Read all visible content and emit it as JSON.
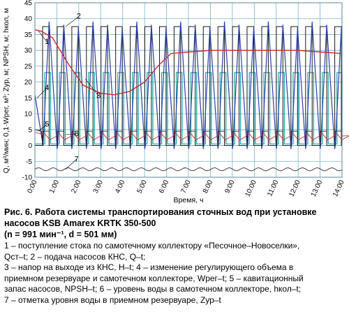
{
  "chart_data": {
    "type": "line",
    "xlabel": "Время, ч",
    "ylabel": "Q, м³/мин; 0,1·Wрег, м³; Zур, м; NPSH, м; hкол, м",
    "x_ticks": [
      "0:00",
      "1:00",
      "2:00",
      "3:00",
      "4:00",
      "5:00",
      "6:00",
      "7:00",
      "8:00",
      "9:00",
      "10:00",
      "11:00",
      "12:00",
      "13:00",
      "14:00"
    ],
    "y_ticks": [
      -10,
      -5,
      0,
      5,
      10,
      15,
      20,
      25,
      30,
      35,
      40,
      45
    ],
    "xlim": [
      0,
      14
    ],
    "ylim": [
      -10,
      45
    ],
    "grid": true,
    "colors": {
      "grid": "#7ab5c4",
      "line1": "#cc2a2a",
      "line2": "#1a1a1a",
      "line3_outline": "#1aa0a0",
      "line4": "#2a3ea8",
      "line5": "#222222",
      "line6": "#cc2a2a",
      "line7": "#333333"
    },
    "curve_labels": [
      "1",
      "2",
      "3",
      "4",
      "5",
      "6",
      "7"
    ],
    "series": [
      {
        "label_id": "1",
        "x": [
          0,
          0.3,
          0.8,
          1.5,
          2.2,
          3.0,
          3.6,
          4.3,
          5.0,
          5.6,
          6.2,
          7,
          8,
          9,
          10,
          11,
          12,
          13,
          14
        ],
        "values": [
          36.5,
          36,
          34,
          26,
          19,
          16.5,
          16,
          17,
          20,
          25,
          29,
          29.5,
          30,
          30,
          30,
          30,
          30,
          29.5,
          29
        ]
      },
      {
        "label_id": "2",
        "period_h": 0.666,
        "high": 37.5,
        "low": 0,
        "duty_on": 0.45
      },
      {
        "label_id": "3",
        "period_h": 0.666,
        "high": 23,
        "low": 0,
        "duty_on": 0.4
      },
      {
        "label_id": "4",
        "period_h": 0.666,
        "high": 39,
        "low": -1,
        "start": 16
      },
      {
        "label_id": "5",
        "period_h": 0.666,
        "high": 4.5,
        "low": 0
      },
      {
        "label_id": "6",
        "period_h": 0.666,
        "high": 3.5,
        "low": 1.8
      },
      {
        "label_id": "7",
        "values_const": -7.5
      }
    ]
  },
  "caption": {
    "title": "Рис. 6. Работа системы транспортирования сточных вод при установке насосов KSB Amarex KRTK 350-500",
    "params": "(n = 991 мин⁻¹, d = 501 мм)",
    "legend_lines": [
      "1 – поступление стока по самотечному коллектору «Песочное–Новоселки»,",
      "Qст–t; 2 – подача насосов КНС, Q–t;",
      "3 – напор на выходе из КНС, H–t; 4 – изменение регулирующего объема в",
      "приемном резервуаре и самотечном коллекторе, Wрег–t; 5 – кавитационный",
      "запас насосов, NPSH–t; 6 – уровень воды в самотечном коллекторе, hкол–t;",
      "7 – отметка уровня воды в приемном резервуаре, Zур–t"
    ]
  }
}
